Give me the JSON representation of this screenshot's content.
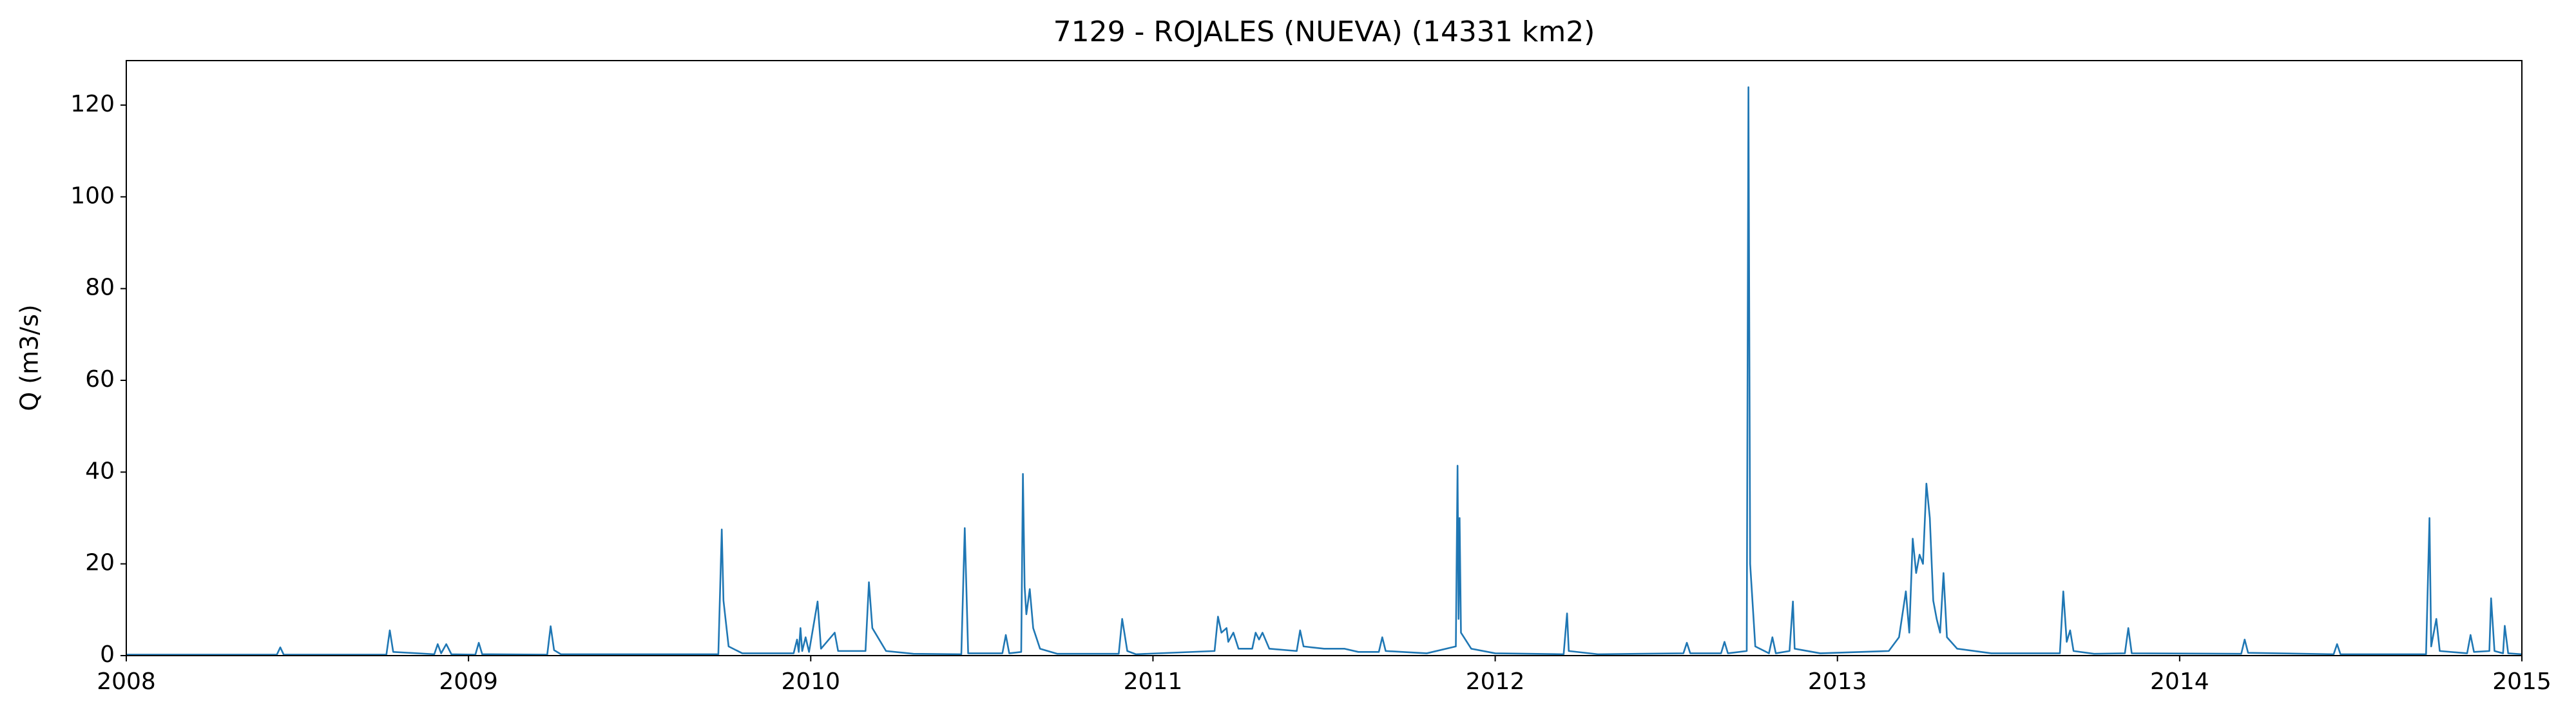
{
  "chart_data": {
    "type": "line",
    "title": "7129 - ROJALES (NUEVA) (14331 km2)",
    "ylabel": "Q (m3/s)",
    "xlim": [
      2008,
      2015
    ],
    "xticks": [
      2008,
      2009,
      2010,
      2011,
      2012,
      2013,
      2014,
      2015
    ],
    "ylim": [
      0,
      129.7
    ],
    "yticks": [
      0,
      20,
      40,
      60,
      80,
      100,
      120
    ],
    "grid": false,
    "series": [
      {
        "name": "Q",
        "color": "#1f77b4",
        "x": [
          2008.0,
          2008.44,
          2008.45,
          2008.46,
          2008.76,
          2008.77,
          2008.78,
          2008.9,
          2008.91,
          2008.92,
          2008.935,
          2008.95,
          2009.02,
          2009.03,
          2009.04,
          2009.23,
          2009.24,
          2009.25,
          2009.27,
          2009.73,
          2009.74,
          2009.745,
          2009.76,
          2009.8,
          2009.95,
          2009.96,
          2009.965,
          2009.97,
          2009.975,
          2009.985,
          2009.995,
          2010.02,
          2010.03,
          2010.07,
          2010.08,
          2010.16,
          2010.17,
          2010.18,
          2010.2,
          2010.22,
          2010.3,
          2010.44,
          2010.45,
          2010.46,
          2010.56,
          2010.57,
          2010.58,
          2010.615,
          2010.62,
          2010.625,
          2010.63,
          2010.64,
          2010.65,
          2010.67,
          2010.72,
          2010.9,
          2010.91,
          2010.925,
          2010.95,
          2011.18,
          2011.19,
          2011.2,
          2011.215,
          2011.22,
          2011.235,
          2011.25,
          2011.29,
          2011.3,
          2011.31,
          2011.32,
          2011.34,
          2011.42,
          2011.43,
          2011.44,
          2011.5,
          2011.56,
          2011.6,
          2011.66,
          2011.67,
          2011.68,
          2011.8,
          2011.885,
          2011.89,
          2011.893,
          2011.896,
          2011.9,
          2011.93,
          2012.0,
          2012.2,
          2012.21,
          2012.215,
          2012.3,
          2012.55,
          2012.56,
          2012.57,
          2012.66,
          2012.67,
          2012.68,
          2012.735,
          2012.74,
          2012.745,
          2012.76,
          2012.8,
          2012.81,
          2012.82,
          2012.86,
          2012.87,
          2012.875,
          2012.95,
          2013.15,
          2013.18,
          2013.2,
          2013.21,
          2013.22,
          2013.23,
          2013.24,
          2013.25,
          2013.26,
          2013.27,
          2013.28,
          2013.29,
          2013.3,
          2013.31,
          2013.32,
          2013.35,
          2013.45,
          2013.65,
          2013.66,
          2013.67,
          2013.68,
          2013.69,
          2013.75,
          2013.84,
          2013.85,
          2013.86,
          2014.18,
          2014.19,
          2014.2,
          2014.45,
          2014.46,
          2014.47,
          2014.72,
          2014.73,
          2014.735,
          2014.75,
          2014.76,
          2014.84,
          2014.85,
          2014.86,
          2014.905,
          2014.91,
          2014.92,
          2014.945,
          2014.95,
          2014.96,
          2015.0
        ],
        "values": [
          0.2,
          0.2,
          1.8,
          0.2,
          0.2,
          5.5,
          0.8,
          0.3,
          2.5,
          0.5,
          2.5,
          0.3,
          0.2,
          2.8,
          0.3,
          0.2,
          6.4,
          1.2,
          0.3,
          0.3,
          27.5,
          12,
          2,
          0.5,
          0.5,
          3.5,
          0.8,
          6,
          1,
          4,
          0.8,
          11.8,
          1.5,
          5,
          1,
          1,
          16,
          6,
          3.5,
          1,
          0.4,
          0.3,
          27.8,
          0.5,
          0.5,
          4.5,
          0.5,
          0.8,
          39.6,
          15,
          9,
          14.5,
          6,
          1.5,
          0.4,
          0.4,
          8,
          1,
          0.3,
          1,
          8.5,
          5,
          6,
          3,
          5,
          1.5,
          1.5,
          5,
          3.5,
          5,
          1.5,
          1,
          5.5,
          2,
          1.5,
          1.5,
          0.8,
          0.8,
          4,
          1,
          0.5,
          2,
          41.4,
          8,
          30,
          5,
          1.5,
          0.5,
          0.3,
          9.2,
          1,
          0.3,
          0.5,
          2.8,
          0.5,
          0.5,
          3,
          0.5,
          1,
          123.9,
          20,
          2,
          0.5,
          4,
          0.5,
          1,
          11.8,
          1.5,
          0.5,
          1,
          4,
          14,
          5,
          25.5,
          18,
          22,
          20,
          37.5,
          30,
          12,
          8,
          5,
          18,
          4,
          1.5,
          0.5,
          0.5,
          14,
          3,
          5.5,
          1,
          0.4,
          0.5,
          6,
          0.5,
          0.4,
          3.5,
          0.6,
          0.3,
          2.5,
          0.3,
          0.3,
          30,
          2,
          8,
          1,
          0.5,
          4.5,
          0.8,
          1,
          12.5,
          1,
          0.5,
          6.5,
          0.5,
          0.3
        ]
      }
    ]
  }
}
